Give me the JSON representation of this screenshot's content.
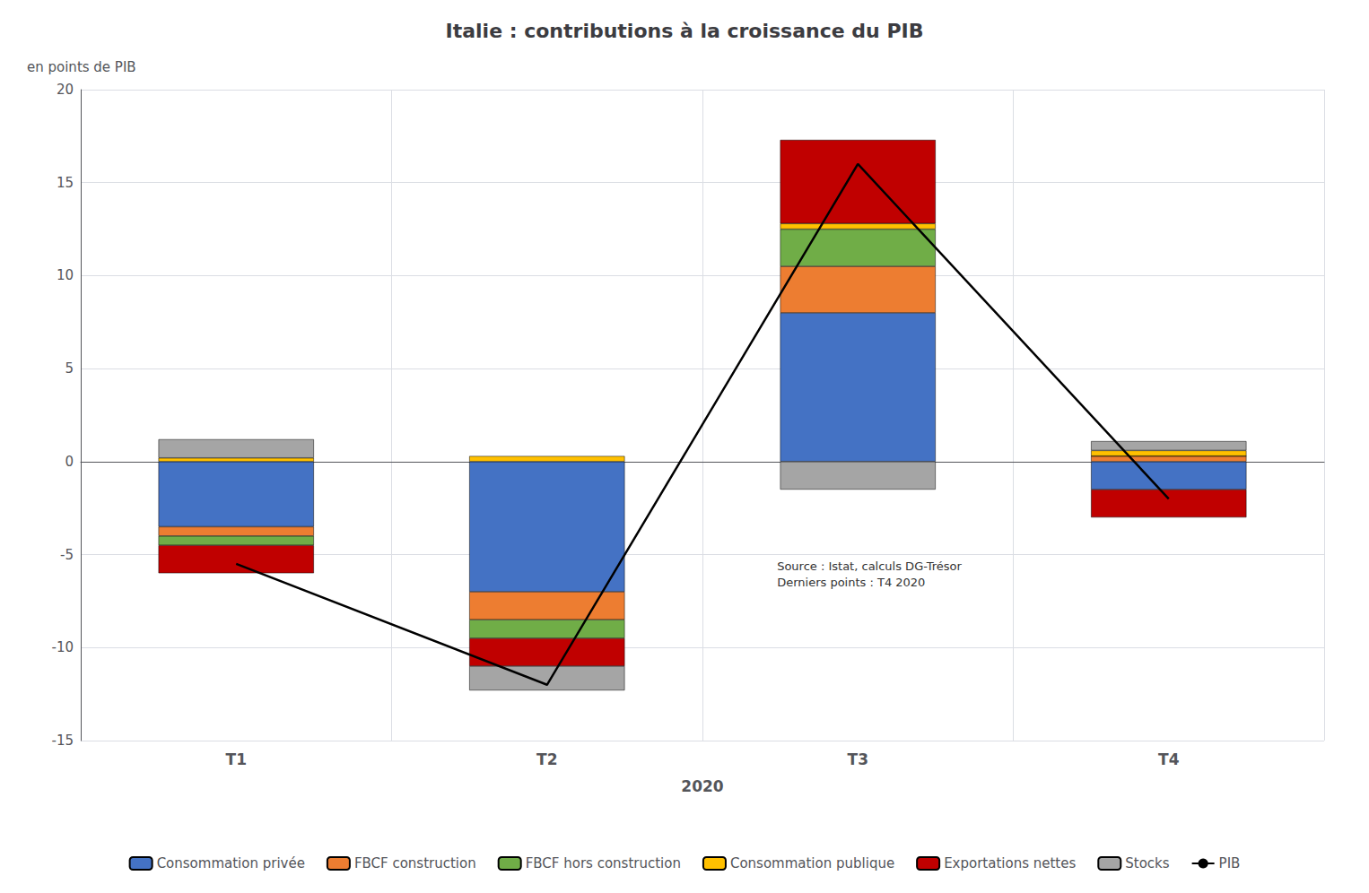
{
  "chart_data": {
    "type": "bar",
    "title": "Italie : contributions à la croissance du PIB",
    "xlabel": "2020",
    "ylabel": "en points de PIB",
    "annotations": [
      "Source : Istat, calculs DG-Trésor\nDerniers points : T4 2020"
    ],
    "categories": [
      "T1",
      "T2",
      "T3",
      "T4"
    ],
    "series": [
      {
        "name": "Consommation privée",
        "color": "#4472C4",
        "values": [
          -3.5,
          -7.0,
          8.0,
          -1.5
        ]
      },
      {
        "name": "FBCF construction",
        "color": "#ED7D31",
        "values": [
          -0.5,
          -1.5,
          2.5,
          0.3
        ]
      },
      {
        "name": "FBCF hors construction",
        "color": "#70AD47",
        "values": [
          -0.5,
          -1.0,
          2.0,
          0.0
        ]
      },
      {
        "name": "Consommation publique",
        "color": "#FFC000",
        "values": [
          0.2,
          0.3,
          0.3,
          0.3
        ]
      },
      {
        "name": "Exportations nettes",
        "color": "#C00000",
        "values": [
          -1.5,
          -1.5,
          4.5,
          -1.5
        ]
      },
      {
        "name": "Stocks",
        "color": "#A5A5A5",
        "values": [
          1.0,
          -1.3,
          -1.5,
          0.5
        ]
      },
      {
        "name": "PIB",
        "type": "line",
        "color": "#000000",
        "values": [
          -5.5,
          -12.0,
          16.0,
          -2.0
        ]
      }
    ],
    "stacked": true,
    "ylim": [
      -15,
      20
    ],
    "yticks": [
      -15,
      -10,
      -5,
      0,
      5,
      10,
      15,
      20
    ],
    "grid": true,
    "legend": "bottom"
  }
}
